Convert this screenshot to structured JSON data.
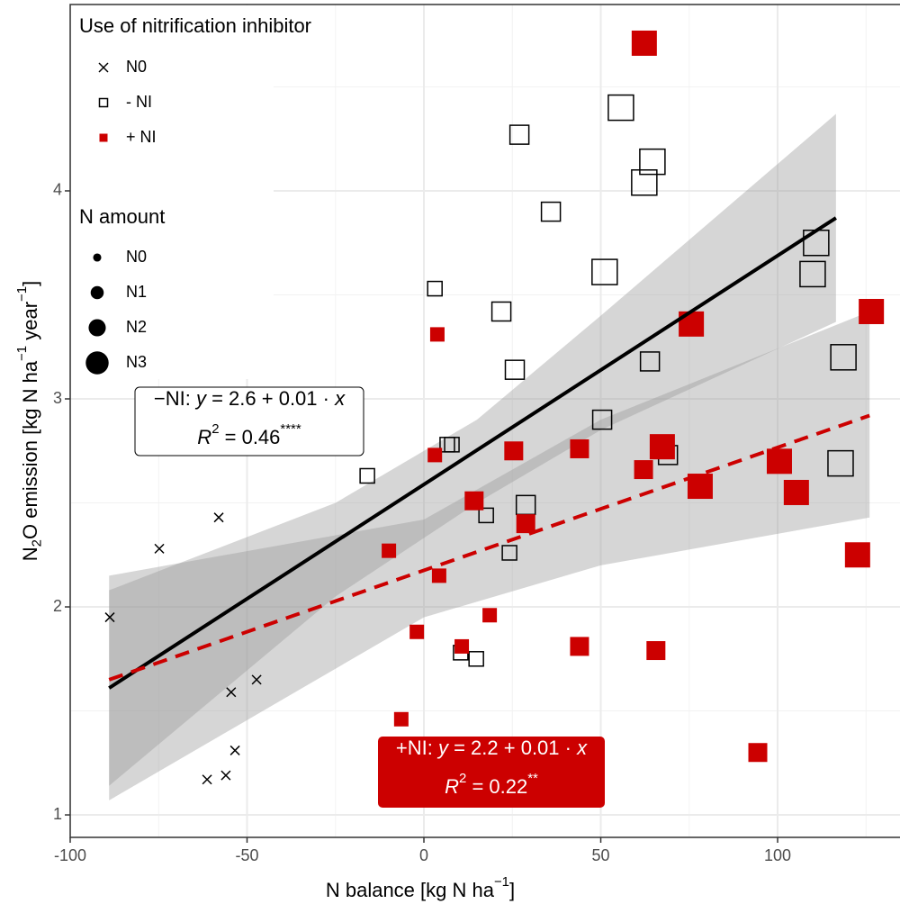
{
  "chart_data": {
    "type": "scatter",
    "x_label": [
      {
        "text": "N balance [kg N ha"
      },
      {
        "text": "−1",
        "sup": true
      },
      {
        "text": "]"
      }
    ],
    "y_label": [
      {
        "text": "N"
      },
      {
        "text": "2",
        "sub": true
      },
      {
        "text": "O emission [kg N ha"
      },
      {
        "text": "−1",
        "sup": true
      },
      {
        "text": " year"
      },
      {
        "text": "−1",
        "sup": true
      },
      {
        "text": "]"
      }
    ],
    "xlim": [
      -100,
      134.6
    ],
    "ylim": [
      0.892,
      4.896
    ],
    "xticks": [
      -100,
      -50,
      0,
      50,
      100
    ],
    "yticks": [
      1,
      2,
      3,
      4
    ],
    "x_minor_ticks": [
      -75,
      -25,
      25,
      75,
      125
    ],
    "y_minor_ticks": [
      1.5,
      2.5,
      3.5,
      4.5
    ],
    "grid": true,
    "legend_title": "Use of nitrification inhibitor",
    "size_legend": {
      "title": "N amount",
      "levels": [
        "N0",
        "N1",
        "N2",
        "N3"
      ],
      "sizes": [
        10,
        16,
        21,
        28
      ]
    },
    "series": [
      {
        "name": "N0",
        "marker": "cross",
        "color": "#000000",
        "x": [
          -88.8,
          -74.8,
          -58.0,
          -47.3,
          -54.5,
          -53.4,
          -61.3,
          -56.0
        ],
        "y": [
          1.95,
          2.28,
          2.43,
          1.65,
          1.59,
          1.31,
          1.17,
          1.19
        ],
        "sizes": [
          "N0",
          "N0",
          "N0",
          "N0",
          "N0",
          "N0",
          "N0",
          "N0"
        ]
      },
      {
        "name": "- NI",
        "marker": "open-square",
        "color": "#000000",
        "x": [
          55.7,
          64.6,
          62.3,
          27.0,
          35.9,
          51.1,
          110.9,
          109.9,
          3.1,
          21.9,
          25.7,
          63.9,
          118.6,
          50.4,
          6.6,
          7.9,
          -16.0,
          69.0,
          117.8,
          28.8,
          17.6,
          24.2,
          10.4,
          14.8
        ],
        "y": [
          4.4,
          4.14,
          4.04,
          4.27,
          3.9,
          3.61,
          3.75,
          3.6,
          3.53,
          3.42,
          3.14,
          3.18,
          3.2,
          2.9,
          2.78,
          2.78,
          2.63,
          2.73,
          2.69,
          2.49,
          2.44,
          2.26,
          1.78,
          1.75
        ],
        "sizes": [
          "N3",
          "N3",
          "N3",
          "N2",
          "N2",
          "N3",
          "N3",
          "N3",
          "N1",
          "N2",
          "N2",
          "N2",
          "N3",
          "N2",
          "N1",
          "N1",
          "N1",
          "N2",
          "N3",
          "N2",
          "N1",
          "N1",
          "N1",
          "N1"
        ]
      },
      {
        "name": "+ NI",
        "marker": "filled-square",
        "color": "#cc0000",
        "x": [
          62.3,
          3.8,
          75.6,
          126.5,
          3.1,
          25.4,
          44.0,
          62.1,
          67.4,
          100.5,
          78.1,
          105.3,
          14.2,
          28.8,
          -9.9,
          4.3,
          122.6,
          18.6,
          -2.0,
          10.7,
          44.0,
          65.6,
          -6.4,
          94.4
        ],
        "y": [
          4.71,
          3.31,
          3.36,
          3.42,
          2.73,
          2.75,
          2.76,
          2.66,
          2.77,
          2.7,
          2.58,
          2.55,
          2.51,
          2.4,
          2.27,
          2.15,
          2.25,
          1.96,
          1.88,
          1.81,
          1.81,
          1.79,
          1.46,
          1.3
        ],
        "sizes": [
          "N3",
          "N1",
          "N3",
          "N3",
          "N1",
          "N2",
          "N2",
          "N2",
          "N3",
          "N3",
          "N3",
          "N3",
          "N2",
          "N2",
          "N1",
          "N1",
          "N3",
          "N1",
          "N1",
          "N1",
          "N2",
          "N2",
          "N1",
          "N2"
        ]
      }
    ],
    "fits": [
      {
        "color": "#000000",
        "dash": false,
        "x": [
          -89,
          116.5
        ],
        "y": [
          1.61,
          3.87
        ],
        "band": {
          "x": [
            -89,
            -25,
            15,
            50,
            116.5
          ],
          "lower": [
            1.14,
            2.05,
            2.5,
            2.85,
            3.37
          ],
          "upper": [
            2.08,
            2.5,
            2.9,
            3.4,
            4.37
          ]
        }
      },
      {
        "color": "#cc0000",
        "dash": true,
        "x": [
          -89,
          126
        ],
        "y": [
          1.65,
          2.92
        ],
        "band": {
          "x": [
            -89,
            0,
            50,
            126
          ],
          "lower": [
            1.07,
            1.95,
            2.2,
            2.43
          ],
          "upper": [
            2.15,
            2.42,
            2.9,
            3.42
          ]
        }
      }
    ],
    "annotations": [
      {
        "lines": [
          [
            {
              "text": "−NI: "
            },
            {
              "text": "y",
              "italic": true
            },
            {
              "text": " = 2.6 + 0.01 · "
            },
            {
              "text": "x",
              "italic": true
            }
          ],
          [
            {
              "text": "R",
              "italic": true
            },
            {
              "text": "2",
              "sup": true
            },
            {
              "text": " = 0.46"
            },
            {
              "text": "****",
              "sup": true
            }
          ]
        ],
        "fill": "#ffffff",
        "text_color": "#000000"
      },
      {
        "lines": [
          [
            {
              "text": "+NI: "
            },
            {
              "text": "y",
              "italic": true
            },
            {
              "text": " = 2.2 + 0.01 · "
            },
            {
              "text": "x",
              "italic": true
            }
          ],
          [
            {
              "text": "R",
              "italic": true
            },
            {
              "text": "2",
              "sup": true
            },
            {
              "text": " = 0.22"
            },
            {
              "text": "**",
              "sup": true
            }
          ]
        ],
        "fill": "#cc0000",
        "text_color": "#ffffff"
      }
    ]
  }
}
